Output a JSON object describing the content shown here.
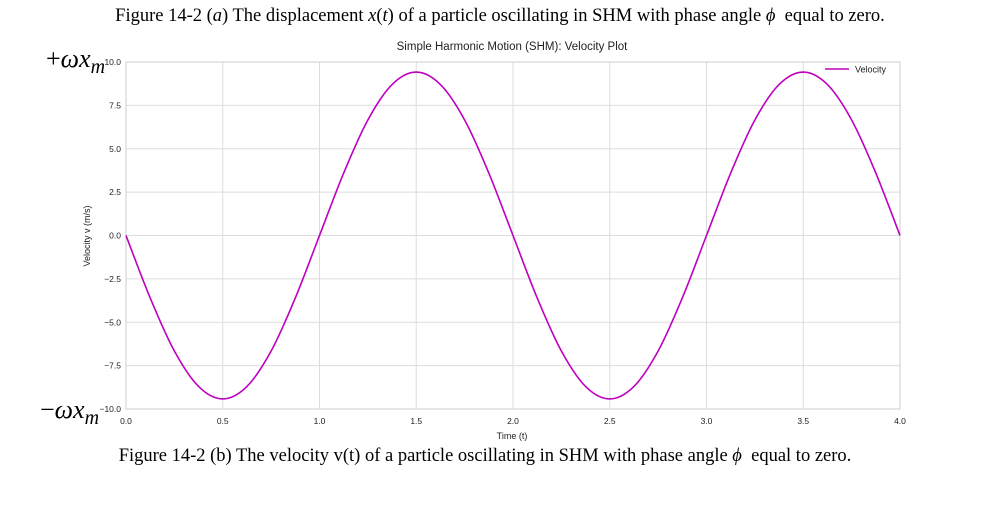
{
  "captions": {
    "top": {
      "prefix": "Figure 14-2 (",
      "letter": "a",
      "mid": ") The displacement ",
      "fx": "x",
      "paren_open": "(",
      "ft": "t",
      "paren_close": ")",
      "rest": " of a particle oscillating in SHM with phase angle ",
      "phi": "ϕ",
      "end": "  equal to zero."
    },
    "bottom": {
      "text": "Figure 14-2 (b) The velocity v(t) of a particle oscillating in SHM with phase angle ",
      "phi": "ϕ",
      "end": "  equal to zero."
    }
  },
  "annotations": {
    "top": {
      "sign": "+",
      "omega": "ω",
      "x": "x",
      "sub": "m"
    },
    "bottom": {
      "sign": "−",
      "omega": "ω",
      "x": "x",
      "sub": "m"
    }
  },
  "chart_data": {
    "type": "line",
    "title": "Simple Harmonic Motion (SHM): Velocity Plot",
    "xlabel": "Time (t)",
    "ylabel": "Velocity v (m/s)",
    "xlim": [
      0.0,
      4.0
    ],
    "ylim": [
      -10.0,
      10.0
    ],
    "xticks": [
      0.0,
      0.5,
      1.0,
      1.5,
      2.0,
      2.5,
      3.0,
      3.5,
      4.0
    ],
    "yticks": [
      10.0,
      7.5,
      5.0,
      2.5,
      0.0,
      -2.5,
      -5.0,
      -7.5,
      -10.0
    ],
    "xtick_labels": [
      "0.0",
      "0.5",
      "1.0",
      "1.5",
      "2.0",
      "2.5",
      "3.0",
      "3.5",
      "4.0"
    ],
    "ytick_labels": [
      "10.0",
      "7.5",
      "5.0",
      "2.5",
      "0.0",
      "−2.5",
      "−5.0",
      "−7.5",
      "−10.0"
    ],
    "grid": true,
    "legend_position": "top-right",
    "series": [
      {
        "name": "Velocity",
        "color": "#bf00bf",
        "x": [
          0,
          0.125,
          0.25,
          0.375,
          0.5,
          0.625,
          0.75,
          0.875,
          1.0,
          1.125,
          1.25,
          1.375,
          1.5,
          1.625,
          1.75,
          1.875,
          2.0,
          2.125,
          2.25,
          2.375,
          2.5,
          2.625,
          2.75,
          2.875,
          3.0,
          3.125,
          3.25,
          3.375,
          3.5,
          3.625,
          3.75,
          3.875,
          4.0
        ],
        "y": [
          0,
          -3.6,
          -6.66,
          -8.7,
          -9.42,
          -8.7,
          -6.66,
          -3.6,
          0,
          3.6,
          6.66,
          8.7,
          9.42,
          8.7,
          6.66,
          3.6,
          0,
          -3.6,
          -6.66,
          -8.7,
          -9.42,
          -8.7,
          -6.66,
          -3.6,
          0,
          3.6,
          6.66,
          8.7,
          9.42,
          8.7,
          6.66,
          3.6,
          0
        ]
      }
    ]
  }
}
